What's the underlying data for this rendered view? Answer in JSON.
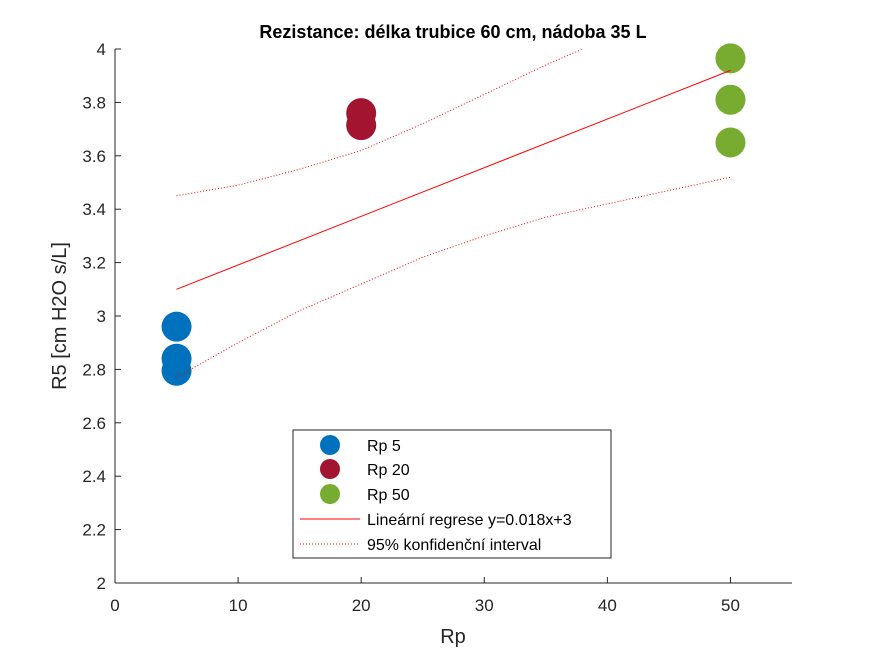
{
  "chart_data": {
    "type": "scatter",
    "title": "Rezistance: délka trubice 60 cm, nádoba 35 L",
    "xlabel": "Rp",
    "ylabel": "R5 [cm H2O s/L]",
    "xlim": [
      0,
      55
    ],
    "ylim": [
      2,
      4
    ],
    "xticks": [
      0,
      10,
      20,
      30,
      40,
      50
    ],
    "yticks": [
      2,
      2.2,
      2.4,
      2.6,
      2.8,
      3,
      3.2,
      3.4,
      3.6,
      3.8,
      4
    ],
    "grid": false,
    "legend_position": "bottom-center",
    "series": [
      {
        "name": "Rp 5",
        "kind": "marker",
        "color": "#0072BD",
        "x": [
          5,
          5,
          5
        ],
        "y": [
          2.96,
          2.84,
          2.795
        ]
      },
      {
        "name": "Rp 20",
        "kind": "marker",
        "color": "#A2142F",
        "x": [
          20,
          20
        ],
        "y": [
          3.76,
          3.715
        ]
      },
      {
        "name": "Rp 50",
        "kind": "marker",
        "color": "#77AC30",
        "x": [
          50,
          50,
          50
        ],
        "y": [
          3.965,
          3.81,
          3.65
        ]
      },
      {
        "name": "Lineární regrese y=0.018x+3",
        "kind": "line",
        "color": "#FF0000",
        "x": [
          5,
          50
        ],
        "y": [
          3.1,
          3.92
        ]
      },
      {
        "name": "95% konfidenční interval",
        "kind": "dotted",
        "color": "#FF0000",
        "x": [
          5,
          10,
          15,
          20,
          25,
          30,
          35,
          38
        ],
        "y": [
          3.45,
          3.49,
          3.55,
          3.62,
          3.72,
          3.83,
          3.94,
          4.0
        ]
      },
      {
        "name": "",
        "kind": "dotted",
        "color": "#FF0000",
        "x": [
          5,
          10,
          15,
          20,
          25,
          30,
          35,
          40,
          45,
          50
        ],
        "y": [
          2.77,
          2.9,
          3.02,
          3.12,
          3.22,
          3.3,
          3.37,
          3.42,
          3.47,
          3.52
        ]
      }
    ]
  }
}
